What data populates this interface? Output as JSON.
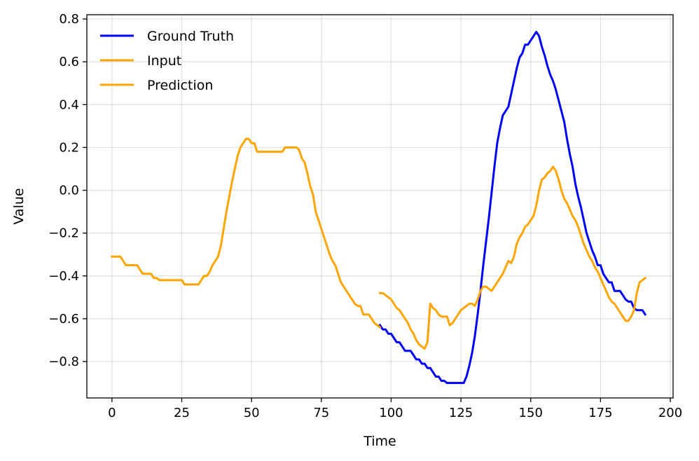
{
  "chart_data": {
    "type": "line",
    "xlabel": "Time",
    "ylabel": "Value",
    "xlim": [
      -9,
      201
    ],
    "ylim": [
      -0.97,
      0.82
    ],
    "xticks": [
      0,
      25,
      50,
      75,
      100,
      125,
      150,
      175,
      200
    ],
    "xtick_labels": [
      "0",
      "25",
      "50",
      "75",
      "100",
      "125",
      "150",
      "175",
      "200"
    ],
    "yticks": [
      -0.8,
      -0.6,
      -0.4,
      -0.2,
      0.0,
      0.2,
      0.4,
      0.6,
      0.8
    ],
    "ytick_labels": [
      "−0.8",
      "−0.6",
      "−0.4",
      "−0.2",
      "0.0",
      "0.2",
      "0.4",
      "0.6",
      "0.8"
    ],
    "grid": true,
    "legend_position": "top-left",
    "series": [
      {
        "name": "Ground Truth",
        "color": "#0000ff",
        "x": [
          96,
          97,
          98,
          99,
          100,
          101,
          102,
          103,
          104,
          105,
          106,
          107,
          108,
          109,
          110,
          111,
          112,
          113,
          114,
          115,
          116,
          117,
          118,
          119,
          120,
          121,
          122,
          123,
          124,
          125,
          126,
          127,
          128,
          129,
          130,
          131,
          132,
          133,
          134,
          135,
          136,
          137,
          138,
          139,
          140,
          141,
          142,
          143,
          144,
          145,
          146,
          147,
          148,
          149,
          150,
          151,
          152,
          153,
          154,
          155,
          156,
          157,
          158,
          159,
          160,
          161,
          162,
          163,
          164,
          165,
          166,
          167,
          168,
          169,
          170,
          171,
          172,
          173,
          174,
          175,
          176,
          177,
          178,
          179,
          180,
          181,
          182,
          183,
          184,
          185,
          186,
          187,
          188,
          189,
          190,
          191
        ],
        "y": [
          -0.63,
          -0.65,
          -0.65,
          -0.67,
          -0.67,
          -0.69,
          -0.71,
          -0.71,
          -0.73,
          -0.75,
          -0.75,
          -0.75,
          -0.77,
          -0.79,
          -0.79,
          -0.81,
          -0.81,
          -0.83,
          -0.83,
          -0.85,
          -0.87,
          -0.87,
          -0.89,
          -0.89,
          -0.9,
          -0.9,
          -0.9,
          -0.9,
          -0.9,
          -0.9,
          -0.9,
          -0.87,
          -0.82,
          -0.76,
          -0.68,
          -0.58,
          -0.47,
          -0.35,
          -0.24,
          -0.13,
          -0.01,
          0.11,
          0.22,
          0.29,
          0.35,
          0.37,
          0.39,
          0.45,
          0.51,
          0.57,
          0.62,
          0.64,
          0.68,
          0.68,
          0.7,
          0.72,
          0.74,
          0.72,
          0.67,
          0.63,
          0.58,
          0.54,
          0.51,
          0.47,
          0.42,
          0.37,
          0.32,
          0.24,
          0.17,
          0.11,
          0.03,
          -0.03,
          -0.08,
          -0.14,
          -0.2,
          -0.24,
          -0.28,
          -0.31,
          -0.35,
          -0.35,
          -0.39,
          -0.41,
          -0.43,
          -0.43,
          -0.47,
          -0.47,
          -0.47,
          -0.49,
          -0.51,
          -0.52,
          -0.52,
          -0.55,
          -0.56,
          -0.56,
          -0.56,
          -0.58
        ]
      },
      {
        "name": "Input",
        "color": "#ffa500",
        "x": [
          0,
          1,
          2,
          3,
          4,
          5,
          6,
          7,
          8,
          9,
          10,
          11,
          12,
          13,
          14,
          15,
          16,
          17,
          18,
          19,
          20,
          21,
          22,
          23,
          24,
          25,
          26,
          27,
          28,
          29,
          30,
          31,
          32,
          33,
          34,
          35,
          36,
          37,
          38,
          39,
          40,
          41,
          42,
          43,
          44,
          45,
          46,
          47,
          48,
          49,
          50,
          51,
          52,
          53,
          54,
          55,
          56,
          57,
          58,
          59,
          60,
          61,
          62,
          63,
          64,
          65,
          66,
          67,
          68,
          69,
          70,
          71,
          72,
          73,
          74,
          75,
          76,
          77,
          78,
          79,
          80,
          81,
          82,
          83,
          84,
          85,
          86,
          87,
          88,
          89,
          90,
          91,
          92,
          93,
          94,
          95,
          96
        ],
        "y": [
          -0.31,
          -0.31,
          -0.31,
          -0.31,
          -0.33,
          -0.35,
          -0.35,
          -0.35,
          -0.35,
          -0.35,
          -0.37,
          -0.39,
          -0.39,
          -0.39,
          -0.39,
          -0.41,
          -0.41,
          -0.42,
          -0.42,
          -0.42,
          -0.42,
          -0.42,
          -0.42,
          -0.42,
          -0.42,
          -0.42,
          -0.44,
          -0.44,
          -0.44,
          -0.44,
          -0.44,
          -0.44,
          -0.42,
          -0.4,
          -0.4,
          -0.38,
          -0.35,
          -0.33,
          -0.31,
          -0.26,
          -0.18,
          -0.1,
          -0.03,
          0.04,
          0.1,
          0.16,
          0.2,
          0.22,
          0.24,
          0.24,
          0.22,
          0.22,
          0.18,
          0.18,
          0.18,
          0.18,
          0.18,
          0.18,
          0.18,
          0.18,
          0.18,
          0.18,
          0.2,
          0.2,
          0.2,
          0.2,
          0.2,
          0.19,
          0.15,
          0.13,
          0.08,
          0.02,
          -0.02,
          -0.1,
          -0.14,
          -0.18,
          -0.22,
          -0.26,
          -0.3,
          -0.33,
          -0.35,
          -0.39,
          -0.43,
          -0.45,
          -0.47,
          -0.49,
          -0.51,
          -0.53,
          -0.54,
          -0.54,
          -0.58,
          -0.58,
          -0.58,
          -0.6,
          -0.62,
          -0.63,
          -0.64
        ]
      },
      {
        "name": "Prediction",
        "color": "#ffa500",
        "x": [
          96,
          97,
          98,
          99,
          100,
          101,
          102,
          103,
          104,
          105,
          106,
          107,
          108,
          109,
          110,
          111,
          112,
          113,
          114,
          115,
          116,
          117,
          118,
          119,
          120,
          121,
          122,
          123,
          124,
          125,
          126,
          127,
          128,
          129,
          130,
          131,
          132,
          133,
          134,
          135,
          136,
          137,
          138,
          139,
          140,
          141,
          142,
          143,
          144,
          145,
          146,
          147,
          148,
          149,
          150,
          151,
          152,
          153,
          154,
          155,
          156,
          157,
          158,
          159,
          160,
          161,
          162,
          163,
          164,
          165,
          166,
          167,
          168,
          169,
          170,
          171,
          172,
          173,
          174,
          175,
          176,
          177,
          178,
          179,
          180,
          181,
          182,
          183,
          184,
          185,
          186,
          187,
          188,
          189,
          190,
          191
        ],
        "y": [
          -0.48,
          -0.48,
          -0.49,
          -0.5,
          -0.51,
          -0.53,
          -0.55,
          -0.56,
          -0.58,
          -0.6,
          -0.62,
          -0.65,
          -0.67,
          -0.7,
          -0.72,
          -0.73,
          -0.74,
          -0.71,
          -0.53,
          -0.55,
          -0.56,
          -0.58,
          -0.59,
          -0.59,
          -0.59,
          -0.63,
          -0.62,
          -0.6,
          -0.58,
          -0.56,
          -0.55,
          -0.54,
          -0.53,
          -0.53,
          -0.54,
          -0.51,
          -0.47,
          -0.45,
          -0.45,
          -0.46,
          -0.47,
          -0.45,
          -0.43,
          -0.41,
          -0.39,
          -0.36,
          -0.33,
          -0.34,
          -0.31,
          -0.25,
          -0.22,
          -0.2,
          -0.17,
          -0.16,
          -0.14,
          -0.12,
          -0.07,
          0.0,
          0.05,
          0.06,
          0.08,
          0.09,
          0.11,
          0.09,
          0.05,
          0.0,
          -0.04,
          -0.06,
          -0.09,
          -0.12,
          -0.14,
          -0.17,
          -0.21,
          -0.25,
          -0.28,
          -0.31,
          -0.33,
          -0.36,
          -0.38,
          -0.41,
          -0.44,
          -0.47,
          -0.5,
          -0.52,
          -0.53,
          -0.55,
          -0.57,
          -0.59,
          -0.61,
          -0.61,
          -0.59,
          -0.56,
          -0.48,
          -0.43,
          -0.42,
          -0.41
        ]
      }
    ]
  }
}
